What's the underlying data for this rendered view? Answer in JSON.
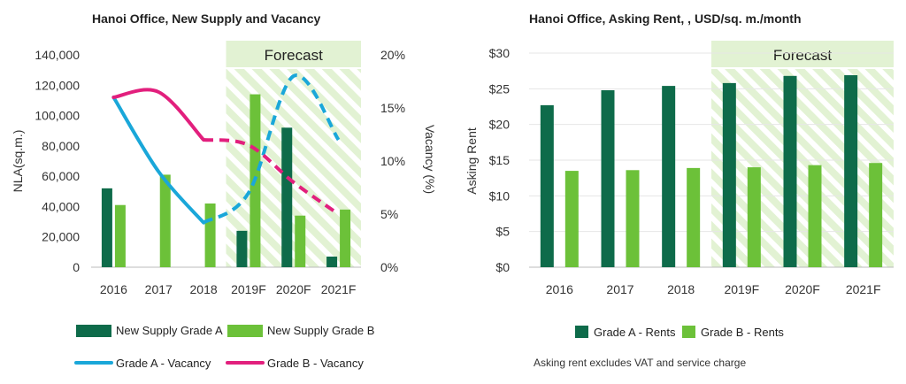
{
  "colors": {
    "grade_a_bar": "#0e6b4a",
    "grade_b_bar": "#6cc139",
    "grade_a_line": "#1aa7d9",
    "grade_b_line": "#e21f7d",
    "forecast_fill": "#e2f2d3",
    "forecast_hatch": "#d3ebbc"
  },
  "chart_data": [
    {
      "type": "bar",
      "title": "Hanoi Office, New Supply and Vacancy",
      "categories": [
        "2016",
        "2017",
        "2018",
        "2019F",
        "2020F",
        "2021F"
      ],
      "forecast_label": "Forecast",
      "forecast_start_index": 3,
      "ylabel": "NLA(sq.m.)",
      "ylim": [
        0,
        140000
      ],
      "y_ticks": [
        "0",
        "20,000",
        "40,000",
        "60,000",
        "80,000",
        "100,000",
        "120,000",
        "140,000"
      ],
      "y2label": "Vacancy (%)",
      "y2lim": [
        0,
        20
      ],
      "y2_ticks": [
        "0%",
        "5%",
        "10%",
        "15%",
        "20%"
      ],
      "series": [
        {
          "name": "New Supply Grade A",
          "kind": "bar",
          "axis": "y",
          "values": [
            52000,
            0,
            0,
            24000,
            92000,
            7000
          ]
        },
        {
          "name": "New Supply Grade B",
          "kind": "bar",
          "axis": "y",
          "values": [
            41000,
            61000,
            42000,
            114000,
            34000,
            38000
          ]
        },
        {
          "name": "Grade A - Vacancy",
          "kind": "line",
          "axis": "y2",
          "values": [
            16.0,
            9.0,
            4.2,
            7.0,
            18.0,
            12.0
          ]
        },
        {
          "name": "Grade B - Vacancy",
          "kind": "line",
          "axis": "y2",
          "values": [
            16.0,
            16.5,
            12.0,
            11.5,
            8.0,
            5.0
          ]
        }
      ],
      "legend_position": "bottom"
    },
    {
      "type": "bar",
      "title": "Hanoi Office, Asking Rent, , USD/sq. m./month",
      "categories": [
        "2016",
        "2017",
        "2018",
        "2019F",
        "2020F",
        "2021F"
      ],
      "forecast_label": "Forecast",
      "forecast_start_index": 3,
      "ylabel": "Asking Rent",
      "ylim": [
        0,
        30
      ],
      "y_ticks": [
        "$0",
        "$5",
        "$10",
        "$15",
        "$20",
        "$25",
        "$30"
      ],
      "series": [
        {
          "name": "Grade A - Rents",
          "values": [
            22.7,
            24.8,
            25.4,
            25.8,
            26.8,
            26.9
          ]
        },
        {
          "name": "Grade B - Rents",
          "values": [
            13.5,
            13.6,
            13.9,
            14.0,
            14.3,
            14.6
          ]
        }
      ],
      "legend_position": "bottom",
      "note": "Asking rent excludes VAT and service charge"
    }
  ]
}
